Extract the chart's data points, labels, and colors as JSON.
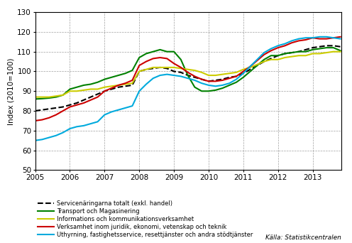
{
  "title": "",
  "ylabel": "Index (2010=100)",
  "source": "Källa: Statistikcentralen",
  "ylim": [
    50,
    130
  ],
  "yticks": [
    50,
    60,
    70,
    80,
    90,
    100,
    110,
    120,
    130
  ],
  "xlim": [
    2005.0,
    2013.83
  ],
  "xticks": [
    2005,
    2006,
    2007,
    2008,
    2009,
    2010,
    2011,
    2012,
    2013
  ],
  "legend": [
    "Servicenäringarna totalt (exkl. handel)",
    "Transport och Magasinering",
    "Informations och kommunikationsverksamhet",
    "Verksamhet inom juridik, ekonomi, vetenskap och teknik",
    "Uthyrning, fastighetsservice, resettjänster och andra stödtjänster"
  ],
  "series": {
    "total": {
      "color": "black",
      "linestyle": "--",
      "linewidth": 1.5,
      "x": [
        2005.0,
        2005.2,
        2005.4,
        2005.6,
        2005.8,
        2006.0,
        2006.2,
        2006.4,
        2006.6,
        2006.8,
        2007.0,
        2007.2,
        2007.4,
        2007.6,
        2007.8,
        2008.0,
        2008.2,
        2008.4,
        2008.6,
        2008.8,
        2009.0,
        2009.2,
        2009.4,
        2009.6,
        2009.8,
        2010.0,
        2010.2,
        2010.4,
        2010.6,
        2010.8,
        2011.0,
        2011.2,
        2011.4,
        2011.6,
        2011.8,
        2012.0,
        2012.2,
        2012.4,
        2012.6,
        2012.8,
        2013.0,
        2013.2,
        2013.4,
        2013.6,
        2013.8
      ],
      "y": [
        80,
        80.5,
        81,
        81.5,
        82,
        83,
        84,
        85.5,
        87,
        88.5,
        90,
        91,
        92,
        92.5,
        93,
        100,
        101,
        101.5,
        102,
        101.5,
        100,
        99.5,
        98,
        97,
        96,
        95,
        95.5,
        96,
        97,
        97.5,
        99,
        101,
        103,
        105,
        106.5,
        108,
        109,
        109.5,
        110,
        111,
        112,
        112.5,
        113,
        113,
        112.5
      ]
    },
    "transport": {
      "color": "#008000",
      "linestyle": "-",
      "linewidth": 1.5,
      "x": [
        2005.0,
        2005.2,
        2005.4,
        2005.6,
        2005.8,
        2006.0,
        2006.2,
        2006.4,
        2006.6,
        2006.8,
        2007.0,
        2007.2,
        2007.4,
        2007.6,
        2007.8,
        2008.0,
        2008.2,
        2008.4,
        2008.6,
        2008.8,
        2009.0,
        2009.2,
        2009.4,
        2009.6,
        2009.8,
        2010.0,
        2010.2,
        2010.4,
        2010.6,
        2010.8,
        2011.0,
        2011.2,
        2011.4,
        2011.6,
        2011.8,
        2012.0,
        2012.2,
        2012.4,
        2012.6,
        2012.8,
        2013.0,
        2013.2,
        2013.4,
        2013.6,
        2013.8
      ],
      "y": [
        86,
        86.2,
        86.5,
        87,
        88,
        91,
        92,
        93,
        93.5,
        94.5,
        96,
        97,
        98,
        99,
        100.5,
        107,
        109,
        110,
        111,
        110,
        110,
        106,
        98,
        92,
        90,
        90,
        90.5,
        91.5,
        93,
        94.5,
        97,
        100,
        103,
        106,
        108,
        108,
        109,
        109.5,
        110,
        110,
        111,
        111.5,
        112,
        112,
        110.5
      ]
    },
    "ict": {
      "color": "#CCCC00",
      "linestyle": "-",
      "linewidth": 1.5,
      "x": [
        2005.0,
        2005.2,
        2005.4,
        2005.6,
        2005.8,
        2006.0,
        2006.2,
        2006.4,
        2006.6,
        2006.8,
        2007.0,
        2007.2,
        2007.4,
        2007.6,
        2007.8,
        2008.0,
        2008.2,
        2008.4,
        2008.6,
        2008.8,
        2009.0,
        2009.2,
        2009.4,
        2009.6,
        2009.8,
        2010.0,
        2010.2,
        2010.4,
        2010.6,
        2010.8,
        2011.0,
        2011.2,
        2011.4,
        2011.6,
        2011.8,
        2012.0,
        2012.2,
        2012.4,
        2012.6,
        2012.8,
        2013.0,
        2013.2,
        2013.4,
        2013.6,
        2013.8
      ],
      "y": [
        87,
        87,
        87,
        87.5,
        88,
        90,
        90,
        90.5,
        91,
        91,
        92,
        92.5,
        93,
        93.5,
        94,
        100,
        101,
        102,
        102,
        102,
        102,
        101.5,
        101,
        100.5,
        99.5,
        98,
        98,
        98.5,
        99,
        99.5,
        101,
        102,
        103.5,
        105,
        106,
        106,
        107,
        107.5,
        108,
        108,
        109,
        109,
        109.5,
        110,
        110
      ]
    },
    "juridik": {
      "color": "#CC0000",
      "linestyle": "-",
      "linewidth": 1.5,
      "x": [
        2005.0,
        2005.2,
        2005.4,
        2005.6,
        2005.8,
        2006.0,
        2006.2,
        2006.4,
        2006.6,
        2006.8,
        2007.0,
        2007.2,
        2007.4,
        2007.6,
        2007.8,
        2008.0,
        2008.2,
        2008.4,
        2008.6,
        2008.8,
        2009.0,
        2009.2,
        2009.4,
        2009.6,
        2009.8,
        2010.0,
        2010.2,
        2010.4,
        2010.6,
        2010.8,
        2011.0,
        2011.2,
        2011.4,
        2011.6,
        2011.8,
        2012.0,
        2012.2,
        2012.4,
        2012.6,
        2012.8,
        2013.0,
        2013.2,
        2013.4,
        2013.6,
        2013.8
      ],
      "y": [
        75,
        75.5,
        76.5,
        78,
        80,
        82,
        83,
        84,
        85.5,
        87,
        90,
        91.5,
        93,
        94,
        95.5,
        103,
        105,
        106.5,
        107,
        106.5,
        104,
        102,
        99.5,
        97.5,
        96,
        95,
        95,
        95.5,
        96.5,
        97.5,
        100,
        102.5,
        105.5,
        108.5,
        110.5,
        112,
        113,
        114.5,
        115.5,
        116,
        117,
        116.5,
        116.5,
        117,
        117.5
      ]
    },
    "uthyrning": {
      "color": "#00AADD",
      "linestyle": "-",
      "linewidth": 1.5,
      "x": [
        2005.0,
        2005.2,
        2005.4,
        2005.6,
        2005.8,
        2006.0,
        2006.2,
        2006.4,
        2006.6,
        2006.8,
        2007.0,
        2007.2,
        2007.4,
        2007.6,
        2007.8,
        2008.0,
        2008.2,
        2008.4,
        2008.6,
        2008.8,
        2009.0,
        2009.2,
        2009.4,
        2009.6,
        2009.8,
        2010.0,
        2010.2,
        2010.4,
        2010.6,
        2010.8,
        2011.0,
        2011.2,
        2011.4,
        2011.6,
        2011.8,
        2012.0,
        2012.2,
        2012.4,
        2012.6,
        2012.8,
        2013.0,
        2013.2,
        2013.4,
        2013.6,
        2013.8
      ],
      "y": [
        65,
        65.5,
        66.5,
        67.5,
        69,
        71,
        72,
        72.5,
        73.5,
        74.5,
        78,
        79.5,
        80.5,
        81.5,
        82.5,
        90,
        93.5,
        96.5,
        98,
        98.5,
        98,
        97.5,
        96.5,
        95.5,
        94,
        93,
        92.5,
        93,
        94,
        96,
        99,
        102.5,
        106,
        109.5,
        111.5,
        113,
        114,
        115.5,
        116.5,
        117,
        117,
        117.5,
        117.5,
        117,
        116.5
      ]
    }
  }
}
